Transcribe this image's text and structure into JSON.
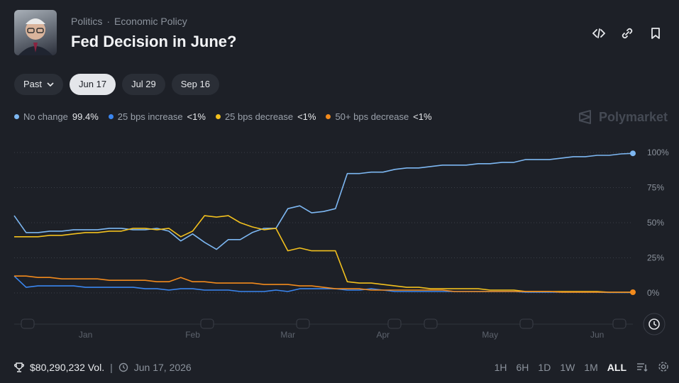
{
  "header": {
    "breadcrumb": [
      "Politics",
      "Economic Policy"
    ],
    "title": "Fed Decision in June?"
  },
  "tabs": {
    "items": [
      "Past",
      "Jun 17",
      "Jul 29",
      "Sep 16"
    ],
    "selected": 1
  },
  "brand": "Polymarket",
  "chart_data": {
    "type": "line",
    "categories": [
      null,
      null,
      null,
      null,
      null,
      null,
      "Jan",
      null,
      null,
      null,
      null,
      null,
      null,
      null,
      null,
      "Feb",
      null,
      null,
      null,
      null,
      null,
      null,
      null,
      "Mar",
      null,
      null,
      null,
      null,
      null,
      null,
      null,
      "Apr",
      null,
      null,
      null,
      null,
      null,
      null,
      null,
      null,
      "May",
      null,
      null,
      null,
      null,
      null,
      null,
      null,
      null,
      "Jun",
      null,
      null,
      null
    ],
    "series": [
      {
        "name": "No change",
        "legend_value": "99.4%",
        "color": "#7db7f2",
        "end_dot": true,
        "values": [
          55,
          43,
          43,
          44,
          44,
          45,
          45,
          45,
          46,
          46,
          45,
          45,
          46,
          44,
          37,
          42,
          36,
          31,
          38,
          38,
          43,
          46,
          46,
          60,
          62,
          57,
          58,
          60,
          85,
          85,
          86,
          86,
          88,
          89,
          89,
          90,
          91,
          91,
          91,
          92,
          92,
          93,
          93,
          95,
          95,
          95,
          96,
          97,
          97,
          98,
          98,
          99,
          99.4
        ]
      },
      {
        "name": "25 bps increase",
        "legend_value": "<1%",
        "color": "#3a86f0",
        "end_dot": false,
        "values": [
          12,
          4,
          5,
          5,
          5,
          5,
          4,
          4,
          4,
          4,
          4,
          3,
          3,
          2,
          3,
          3,
          2,
          2,
          2,
          1,
          1,
          1,
          2,
          1,
          3,
          3,
          3,
          3,
          2,
          2,
          3,
          2,
          1,
          1,
          1,
          1,
          1,
          1,
          1,
          1,
          1,
          1,
          1,
          0.5,
          0.5,
          0.5,
          0.5,
          0.5,
          0.5,
          0.5,
          0.3,
          0.3,
          0.3
        ]
      },
      {
        "name": "25 bps decrease",
        "legend_value": "<1%",
        "color": "#f2c01e",
        "end_dot": false,
        "values": [
          40,
          40,
          40,
          41,
          41,
          42,
          43,
          43,
          44,
          44,
          46,
          46,
          45,
          46,
          40,
          44,
          55,
          54,
          55,
          50,
          47,
          45,
          46,
          30,
          32,
          30,
          30,
          30,
          8,
          7,
          7,
          6,
          5,
          4,
          4,
          3,
          3,
          3,
          3,
          3,
          2,
          2,
          2,
          1,
          1,
          1,
          1,
          1,
          1,
          1,
          0.5,
          0.5,
          0.5
        ]
      },
      {
        "name": "50+ bps decrease",
        "legend_value": "<1%",
        "color": "#f28a1c",
        "end_dot": true,
        "values": [
          12,
          12,
          11,
          11,
          10,
          10,
          10,
          10,
          9,
          9,
          9,
          9,
          8,
          8,
          11,
          8,
          8,
          7,
          7,
          7,
          7,
          6,
          6,
          6,
          5,
          5,
          4,
          3,
          3,
          3,
          2,
          2,
          2,
          2,
          2,
          2,
          2,
          1,
          1,
          1,
          1,
          1,
          1,
          1,
          1,
          1,
          0.5,
          0.5,
          0.5,
          0.5,
          0.5,
          0.5,
          0.5
        ]
      }
    ],
    "ylim": [
      0,
      100
    ],
    "yticks": [
      {
        "value": 0,
        "label": "0%"
      },
      {
        "value": 25,
        "label": "25%"
      },
      {
        "value": 50,
        "label": "50%"
      },
      {
        "value": 75,
        "label": "75%"
      },
      {
        "value": 100,
        "label": "100%"
      }
    ],
    "grid": true
  },
  "footer": {
    "volume": "$80,290,232 Vol.",
    "date": "Jun 17, 2026",
    "ranges": [
      "1H",
      "6H",
      "1D",
      "1W",
      "1M",
      "ALL"
    ],
    "selected_range": 5
  }
}
